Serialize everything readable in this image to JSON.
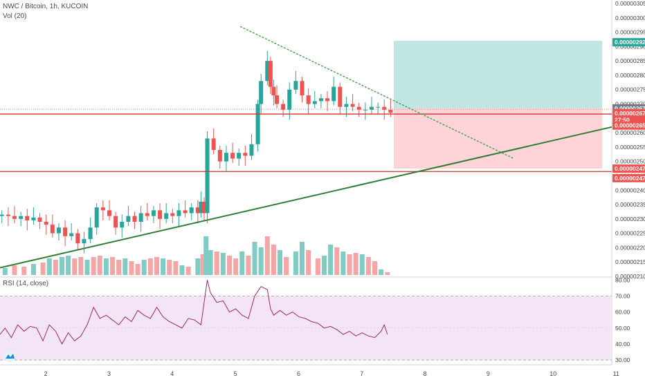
{
  "header": {
    "title": "NWC / Bitcoin, 1h, KUCOIN",
    "volume_label": "Vol (20)",
    "rsi_label": "RSI (14, close)"
  },
  "colors": {
    "up": "#26a69a",
    "down": "#ef5350",
    "up_vol": "#80cbc4",
    "down_vol": "#f5a5a3",
    "trend_support": "#2e7d32",
    "trend_resist": "#43a047",
    "hline": "#d32f2f",
    "target_zone": "#b2dfdb",
    "stop_zone": "#ffcdd2",
    "rsi_line": "#a3246d",
    "rsi_band": "#f3e5f5"
  },
  "chart_data": [
    {
      "type": "candlestick",
      "title": "NWC / Bitcoin, 1h, KUCOIN",
      "x_tick_labels": [
        "2",
        "3",
        "4",
        "5",
        "6",
        "7",
        "8",
        "9",
        "10",
        "11"
      ],
      "y_tick_labels": [
        "0.00000305",
        "0.00000300",
        "0.00000295",
        "0.00000290",
        "0.00000285",
        "0.00000280",
        "0.00000275",
        "0.00000270",
        "0.00000265",
        "0.00000260",
        "0.00000255",
        "0.00000250",
        "0.00000245",
        "0.00000240",
        "0.00000235",
        "0.00000230",
        "0.00000225",
        "0.00000220",
        "0.00000215",
        "0.00000210"
      ],
      "ylim": [
        2.1e-06,
        3.05e-06
      ],
      "xlim": [
        1.27,
        10.95
      ],
      "close_series": [
        {
          "x": 1.3,
          "v": 231.5
        },
        {
          "x": 1.4,
          "v": 231
        },
        {
          "x": 1.5,
          "v": 230
        },
        {
          "x": 1.6,
          "v": 231
        },
        {
          "x": 1.7,
          "v": 229.5
        },
        {
          "x": 1.8,
          "v": 230.5
        },
        {
          "x": 1.9,
          "v": 229
        },
        {
          "x": 2.0,
          "v": 228
        },
        {
          "x": 2.1,
          "v": 225
        },
        {
          "x": 2.2,
          "v": 227
        },
        {
          "x": 2.3,
          "v": 224
        },
        {
          "x": 2.4,
          "v": 225
        },
        {
          "x": 2.5,
          "v": 221.5
        },
        {
          "x": 2.6,
          "v": 223
        },
        {
          "x": 2.7,
          "v": 227
        },
        {
          "x": 2.8,
          "v": 234
        },
        {
          "x": 2.9,
          "v": 233
        },
        {
          "x": 3.0,
          "v": 231
        },
        {
          "x": 3.1,
          "v": 227
        },
        {
          "x": 3.2,
          "v": 229
        },
        {
          "x": 3.3,
          "v": 231
        },
        {
          "x": 3.4,
          "v": 229
        },
        {
          "x": 3.5,
          "v": 232
        },
        {
          "x": 3.6,
          "v": 231
        },
        {
          "x": 3.7,
          "v": 233
        },
        {
          "x": 3.8,
          "v": 230
        },
        {
          "x": 3.9,
          "v": 232
        },
        {
          "x": 4.0,
          "v": 231
        },
        {
          "x": 4.1,
          "v": 233
        },
        {
          "x": 4.2,
          "v": 232
        },
        {
          "x": 4.3,
          "v": 234
        },
        {
          "x": 4.4,
          "v": 232
        },
        {
          "x": 4.45,
          "v": 236
        },
        {
          "x": 4.5,
          "v": 232
        },
        {
          "x": 4.55,
          "v": 258
        },
        {
          "x": 4.65,
          "v": 254
        },
        {
          "x": 4.75,
          "v": 250
        },
        {
          "x": 4.85,
          "v": 253
        },
        {
          "x": 4.95,
          "v": 251
        },
        {
          "x": 5.05,
          "v": 253
        },
        {
          "x": 5.15,
          "v": 252
        },
        {
          "x": 5.25,
          "v": 256
        },
        {
          "x": 5.35,
          "v": 270
        },
        {
          "x": 5.4,
          "v": 278
        },
        {
          "x": 5.5,
          "v": 285
        },
        {
          "x": 5.55,
          "v": 276
        },
        {
          "x": 5.6,
          "v": 273
        },
        {
          "x": 5.65,
          "v": 270
        },
        {
          "x": 5.75,
          "v": 268
        },
        {
          "x": 5.85,
          "v": 275
        },
        {
          "x": 5.95,
          "v": 278
        },
        {
          "x": 6.05,
          "v": 273
        },
        {
          "x": 6.15,
          "v": 270
        },
        {
          "x": 6.25,
          "v": 271
        },
        {
          "x": 6.35,
          "v": 272
        },
        {
          "x": 6.45,
          "v": 271
        },
        {
          "x": 6.55,
          "v": 276
        },
        {
          "x": 6.65,
          "v": 269
        },
        {
          "x": 6.75,
          "v": 270
        },
        {
          "x": 6.85,
          "v": 269
        },
        {
          "x": 6.95,
          "v": 268
        },
        {
          "x": 7.05,
          "v": 268
        },
        {
          "x": 7.15,
          "v": 269
        },
        {
          "x": 7.25,
          "v": 269
        },
        {
          "x": 7.35,
          "v": 268
        },
        {
          "x": 7.45,
          "v": 267
        }
      ],
      "volume_series": [
        {
          "x": 1.35,
          "v": 5,
          "up": true
        },
        {
          "x": 1.5,
          "v": 7,
          "up": false
        },
        {
          "x": 1.65,
          "v": 6,
          "up": false
        },
        {
          "x": 1.8,
          "v": 8,
          "up": true
        },
        {
          "x": 1.95,
          "v": 9,
          "up": false
        },
        {
          "x": 2.05,
          "v": 12,
          "up": true
        },
        {
          "x": 2.15,
          "v": 11,
          "up": false
        },
        {
          "x": 2.25,
          "v": 13,
          "up": true
        },
        {
          "x": 2.35,
          "v": 14,
          "up": true
        },
        {
          "x": 2.45,
          "v": 12,
          "up": false
        },
        {
          "x": 2.55,
          "v": 13,
          "up": false
        },
        {
          "x": 2.65,
          "v": 11,
          "up": true
        },
        {
          "x": 2.75,
          "v": 13,
          "up": false
        },
        {
          "x": 2.85,
          "v": 14,
          "up": false
        },
        {
          "x": 2.95,
          "v": 12,
          "up": true
        },
        {
          "x": 3.05,
          "v": 13,
          "up": false
        },
        {
          "x": 3.15,
          "v": 11,
          "up": false
        },
        {
          "x": 3.25,
          "v": 12,
          "up": true
        },
        {
          "x": 3.35,
          "v": 10,
          "up": false
        },
        {
          "x": 3.45,
          "v": 8,
          "up": false
        },
        {
          "x": 3.55,
          "v": 11,
          "up": true
        },
        {
          "x": 3.65,
          "v": 12,
          "up": false
        },
        {
          "x": 3.75,
          "v": 13,
          "up": false
        },
        {
          "x": 3.85,
          "v": 12,
          "up": true
        },
        {
          "x": 3.95,
          "v": 11,
          "up": false
        },
        {
          "x": 4.05,
          "v": 10,
          "up": false
        },
        {
          "x": 4.15,
          "v": 7,
          "up": true
        },
        {
          "x": 4.25,
          "v": 6,
          "up": false
        },
        {
          "x": 4.4,
          "v": 12,
          "up": true
        },
        {
          "x": 4.48,
          "v": 15,
          "up": false
        },
        {
          "x": 4.53,
          "v": 28,
          "up": true
        },
        {
          "x": 4.6,
          "v": 18,
          "up": true
        },
        {
          "x": 4.7,
          "v": 17,
          "up": false
        },
        {
          "x": 4.8,
          "v": 16,
          "up": true
        },
        {
          "x": 4.9,
          "v": 14,
          "up": false
        },
        {
          "x": 5.0,
          "v": 12,
          "up": false
        },
        {
          "x": 5.1,
          "v": 17,
          "up": true
        },
        {
          "x": 5.2,
          "v": 14,
          "up": false
        },
        {
          "x": 5.3,
          "v": 24,
          "up": true
        },
        {
          "x": 5.4,
          "v": 20,
          "up": true
        },
        {
          "x": 5.5,
          "v": 28,
          "up": false
        },
        {
          "x": 5.6,
          "v": 22,
          "up": false
        },
        {
          "x": 5.7,
          "v": 18,
          "up": true
        },
        {
          "x": 5.8,
          "v": 13,
          "up": false
        },
        {
          "x": 5.95,
          "v": 17,
          "up": true
        },
        {
          "x": 6.05,
          "v": 24,
          "up": true
        },
        {
          "x": 6.15,
          "v": 18,
          "up": false
        },
        {
          "x": 6.3,
          "v": 12,
          "up": false
        },
        {
          "x": 6.4,
          "v": 14,
          "up": true
        },
        {
          "x": 6.5,
          "v": 22,
          "up": true
        },
        {
          "x": 6.6,
          "v": 20,
          "up": false
        },
        {
          "x": 6.7,
          "v": 17,
          "up": true
        },
        {
          "x": 6.8,
          "v": 15,
          "up": false
        },
        {
          "x": 6.9,
          "v": 16,
          "up": false
        },
        {
          "x": 7.0,
          "v": 15,
          "up": true
        },
        {
          "x": 7.1,
          "v": 13,
          "up": false
        },
        {
          "x": 7.2,
          "v": 10,
          "up": false
        },
        {
          "x": 7.3,
          "v": 4,
          "up": true
        },
        {
          "x": 7.4,
          "v": 2,
          "up": false
        }
      ],
      "price_tags": [
        {
          "label": "0.00000292",
          "v": 291.5,
          "color": "#26a69a"
        },
        {
          "label": "0.00000267",
          "v": 268.5,
          "color": "#787b86"
        },
        {
          "label": "0.00000267",
          "v": 266.8,
          "color": "#ef5350"
        },
        {
          "label": "27:50",
          "v": 264.5,
          "color": "#ef5350"
        },
        {
          "label": "0.00000265",
          "v": 262.5,
          "color": "#ef5350"
        },
        {
          "label": "0.00000247",
          "v": 247.5,
          "color": "#ef5350"
        },
        {
          "label": "0.00000247",
          "v": 244.2,
          "color": "#ef5350"
        }
      ],
      "horizontal_lines": [
        {
          "v": 266.5
        },
        {
          "v": 246.5
        }
      ],
      "current_price_dotted": 268.2,
      "trendlines": [
        {
          "name": "support",
          "from": {
            "x": 1.27,
            "v": 213
          },
          "to": {
            "x": 10.95,
            "v": 262
          },
          "dash": false
        },
        {
          "name": "resistance",
          "from": {
            "x": 5.07,
            "v": 297
          },
          "to": {
            "x": 9.4,
            "v": 251
          },
          "dash": true
        }
      ],
      "position_zones": {
        "x_start": 7.5,
        "x_end": 10.8,
        "target_top": 292,
        "entry": 268.5,
        "stop": 247.5
      }
    },
    {
      "type": "line",
      "title": "RSI (14, close)",
      "y_tick_labels": [
        "80.00",
        "70.00",
        "60.00",
        "50.00",
        "40.00",
        "30.00"
      ],
      "ylim": [
        27,
        81
      ],
      "band": [
        30,
        70
      ],
      "x": [
        1.27,
        1.35,
        1.45,
        1.55,
        1.65,
        1.75,
        1.85,
        1.95,
        2.05,
        2.15,
        2.25,
        2.35,
        2.45,
        2.55,
        2.65,
        2.75,
        2.85,
        2.95,
        3.05,
        3.15,
        3.25,
        3.35,
        3.45,
        3.55,
        3.65,
        3.75,
        3.85,
        3.95,
        4.05,
        4.15,
        4.25,
        4.35,
        4.45,
        4.55,
        4.6,
        4.7,
        4.8,
        4.9,
        5.0,
        5.1,
        5.2,
        5.3,
        5.4,
        5.5,
        5.55,
        5.6,
        5.7,
        5.8,
        5.9,
        6.0,
        6.1,
        6.2,
        6.3,
        6.4,
        6.5,
        6.6,
        6.7,
        6.8,
        6.9,
        7.0,
        7.1,
        7.2,
        7.3,
        7.35,
        7.4
      ],
      "values": [
        46,
        50,
        44,
        52,
        48,
        51,
        50,
        42,
        52,
        48,
        40,
        47,
        42,
        45,
        52,
        63,
        56,
        58,
        55,
        52,
        57,
        54,
        61,
        58,
        56,
        63,
        57,
        54,
        52,
        50,
        56,
        55,
        52,
        80,
        72,
        66,
        67,
        60,
        62,
        58,
        56,
        70,
        76,
        74,
        62,
        58,
        61,
        58,
        60,
        57,
        56,
        54,
        53,
        50,
        51,
        49,
        46,
        48,
        45,
        47,
        45,
        44,
        48,
        52,
        46
      ]
    }
  ]
}
